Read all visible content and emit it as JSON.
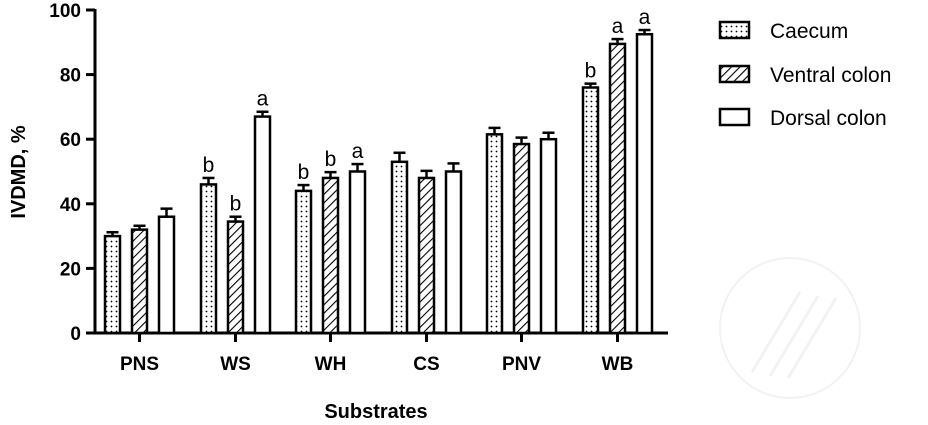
{
  "chart_data": {
    "type": "bar",
    "title": "",
    "xlabel": "Substrates",
    "ylabel": "IVDMD, %",
    "ylim": [
      0,
      100
    ],
    "yticks": [
      0,
      20,
      40,
      60,
      80,
      100
    ],
    "grid": false,
    "legend_position": "top-right",
    "categories": [
      "PNS",
      "WS",
      "WH",
      "CS",
      "PNV",
      "WB"
    ],
    "series": [
      {
        "name": "Caecum",
        "pattern": "dots",
        "values": [
          30,
          46,
          44,
          53,
          61.5,
          76
        ],
        "errors": [
          1.2,
          2,
          1.8,
          2.8,
          2,
          1.2
        ],
        "letters": [
          "",
          "b",
          "b",
          "",
          "",
          "b"
        ]
      },
      {
        "name": "Ventral colon",
        "pattern": "hatch",
        "values": [
          32,
          34.5,
          48,
          48,
          58.5,
          89.5
        ],
        "errors": [
          1.2,
          1.5,
          1.8,
          2.2,
          2,
          1.5
        ],
        "letters": [
          "",
          "b",
          "b",
          "",
          "",
          "a"
        ]
      },
      {
        "name": "Dorsal colon",
        "pattern": "none",
        "values": [
          36,
          67,
          50,
          50,
          60,
          92.5
        ],
        "errors": [
          2.5,
          1.5,
          2.3,
          2.5,
          2,
          1.3
        ],
        "letters": [
          "",
          "a",
          "a",
          "",
          "",
          "a"
        ]
      }
    ],
    "colors": {
      "axis": "#000000",
      "fill": "#ffffff",
      "watermark": "#e6e6e6"
    }
  }
}
